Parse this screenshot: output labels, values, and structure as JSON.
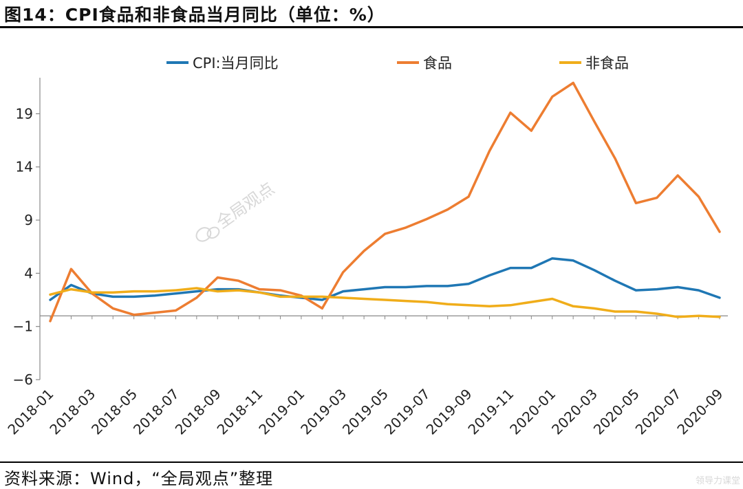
{
  "header": {
    "title": "图14：CPI食品和非食品当月同比（单位：%）"
  },
  "footer": {
    "source": "资料来源：Wind，“全局观点”整理"
  },
  "watermark": {
    "text": "全局观点"
  },
  "corner_mark": "领导力课堂",
  "colors": {
    "cpi": "#1f77b4",
    "food": "#ed7d31",
    "nonfood": "#f0ad1a"
  },
  "chart_data": {
    "type": "line",
    "title": "",
    "xlabel": "",
    "ylabel": "",
    "ylim": [
      -6,
      22
    ],
    "yticks": [
      -6,
      -1,
      4,
      9,
      14,
      19
    ],
    "x": [
      "2018-01",
      "2018-02",
      "2018-03",
      "2018-04",
      "2018-05",
      "2018-06",
      "2018-07",
      "2018-08",
      "2018-09",
      "2018-10",
      "2018-11",
      "2018-12",
      "2019-01",
      "2019-02",
      "2019-03",
      "2019-04",
      "2019-05",
      "2019-06",
      "2019-07",
      "2019-08",
      "2019-09",
      "2019-10",
      "2019-11",
      "2019-12",
      "2020-01",
      "2020-02",
      "2020-03",
      "2020-04",
      "2020-05",
      "2020-06",
      "2020-07",
      "2020-08",
      "2020-09"
    ],
    "xtick_labels": [
      "2018-01",
      "2018-03",
      "2018-05",
      "2018-07",
      "2018-09",
      "2018-11",
      "2019-01",
      "2019-03",
      "2019-05",
      "2019-07",
      "2019-09",
      "2019-11",
      "2020-01",
      "2020-03",
      "2020-05",
      "2020-07",
      "2020-09"
    ],
    "legend": "top",
    "grid": false,
    "series": [
      {
        "name": "CPI:当月同比",
        "color_key": "cpi",
        "values": [
          1.5,
          2.9,
          2.1,
          1.8,
          1.8,
          1.9,
          2.1,
          2.3,
          2.5,
          2.5,
          2.2,
          1.9,
          1.7,
          1.5,
          2.3,
          2.5,
          2.7,
          2.7,
          2.8,
          2.8,
          3.0,
          3.8,
          4.5,
          4.5,
          5.4,
          5.2,
          4.3,
          3.3,
          2.4,
          2.5,
          2.7,
          2.4,
          1.7
        ]
      },
      {
        "name": "食品",
        "color_key": "food",
        "values": [
          -0.5,
          4.4,
          2.1,
          0.7,
          0.1,
          0.3,
          0.5,
          1.7,
          3.6,
          3.3,
          2.5,
          2.4,
          1.9,
          0.7,
          4.1,
          6.1,
          7.7,
          8.3,
          9.1,
          10.0,
          11.2,
          15.5,
          19.1,
          17.4,
          20.6,
          21.9,
          18.3,
          14.8,
          10.6,
          11.1,
          13.2,
          11.2,
          7.9
        ]
      },
      {
        "name": "非食品",
        "color_key": "nonfood",
        "values": [
          2.0,
          2.5,
          2.2,
          2.2,
          2.3,
          2.3,
          2.4,
          2.6,
          2.3,
          2.4,
          2.2,
          1.8,
          1.8,
          1.8,
          1.7,
          1.6,
          1.5,
          1.4,
          1.3,
          1.1,
          1.0,
          0.9,
          1.0,
          1.3,
          1.6,
          0.9,
          0.7,
          0.4,
          0.4,
          0.2,
          -0.1,
          0.0,
          -0.1
        ]
      }
    ]
  }
}
